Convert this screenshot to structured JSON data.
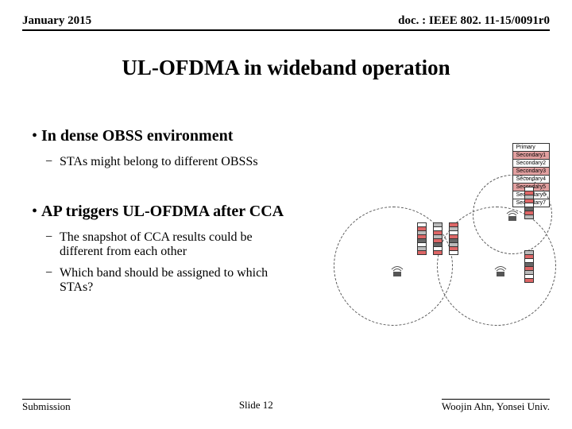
{
  "header": {
    "left": "January 2015",
    "right": "doc. : IEEE 802. 11-15/0091r0"
  },
  "title": "UL-OFDMA in wideband operation",
  "bullet1": "In dense OBSS environment",
  "sub1": "STAs might belong to different OBSSs",
  "bullet2": "AP triggers UL-OFDMA after CCA",
  "sub2": "The snapshot of CCA results could be different from each other",
  "sub3": "Which band should be assigned to which STAs?",
  "footer": {
    "left": "Submission",
    "center": "Slide 12",
    "right": "Woojin Ahn, Yonsei Univ."
  },
  "legend": [
    "Primary",
    "Secondary1",
    "Secondary2",
    "Secondary3",
    "Secondary4",
    "Secondary5",
    "Secondary6",
    "Secondary7"
  ],
  "legend_highlight": [
    1,
    3,
    5
  ],
  "colors": {
    "highlight": "#e2a0a0"
  }
}
